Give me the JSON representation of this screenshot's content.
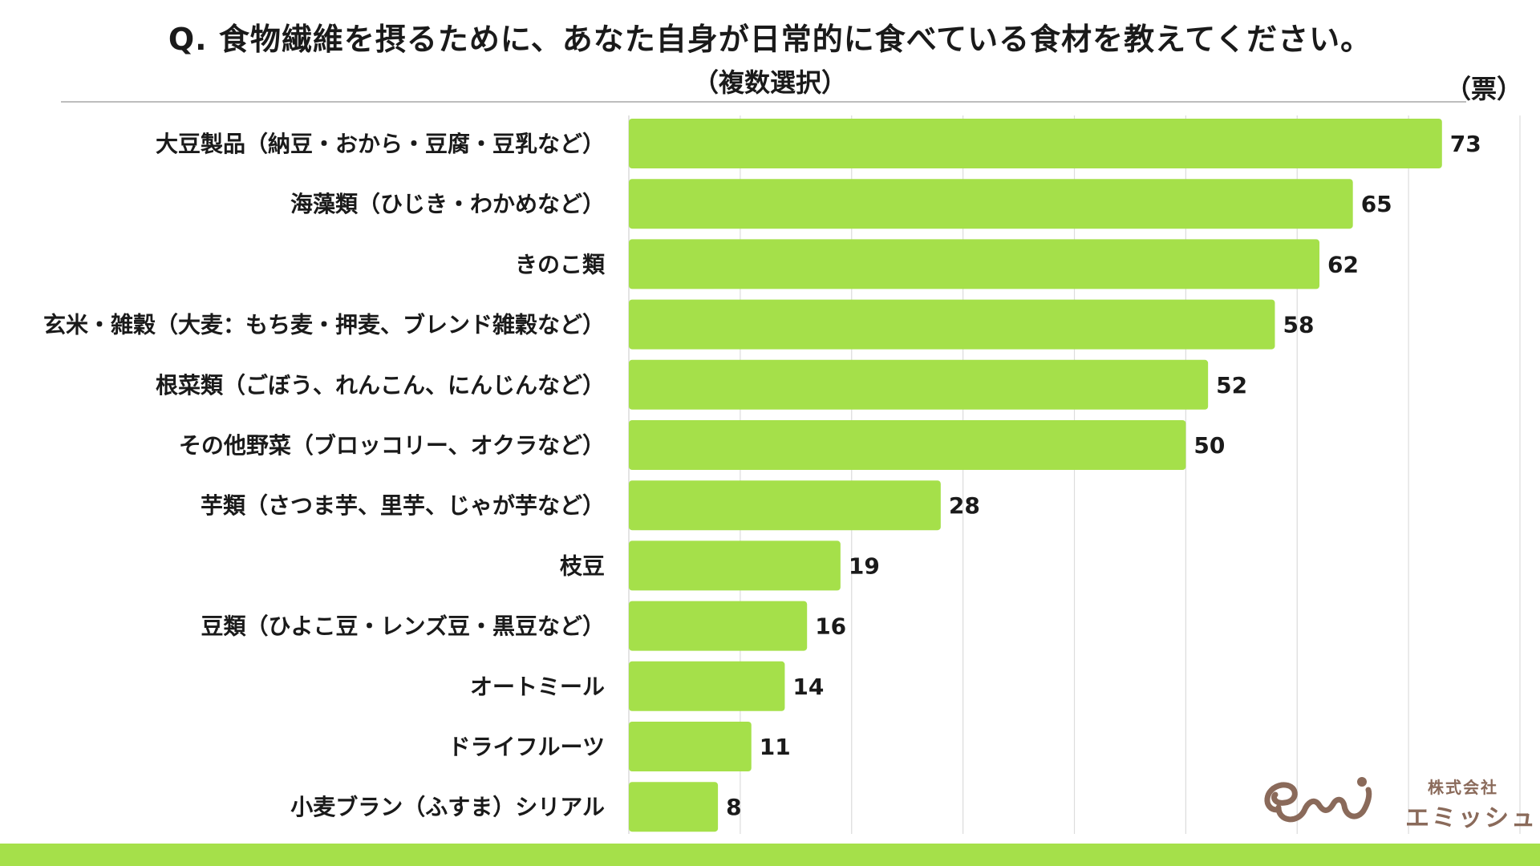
{
  "header": {
    "title": "Q. 食物繊維を摂るために、あなた自身が日常的に食べている食材を教えてください。",
    "subtitle": "（複数選択）",
    "unit": "（票）"
  },
  "brand": {
    "company_type": "株式会社",
    "company_name": "エミッシュ",
    "logo_color": "#8a6a5a"
  },
  "colors": {
    "bar": "#a5e04a",
    "band": "#a5e04a",
    "grid": "#dcdcdc"
  },
  "chart_data": {
    "type": "bar",
    "orientation": "horizontal",
    "title": "Q. 食物繊維を摂るために、あなた自身が日常的に食べている食材を教えてください。",
    "subtitle": "（複数選択）",
    "unit": "（票）",
    "categories": [
      "大豆製品（納豆・おから・豆腐・豆乳など）",
      "海藻類（ひじき・わかめなど）",
      "きのこ類",
      "玄米・雑穀（大麦：もち麦・押麦、ブレンド雑穀など）",
      "根菜類（ごぼう、れんこん、にんじんなど）",
      "その他野菜（ブロッコリー、オクラなど）",
      "芋類（さつま芋、里芋、じゃが芋など）",
      "枝豆",
      "豆類（ひよこ豆・レンズ豆・黒豆など）",
      "オートミール",
      "ドライフルーツ",
      "小麦ブラン（ふすま）シリアル"
    ],
    "values": [
      73,
      65,
      62,
      58,
      52,
      50,
      28,
      19,
      16,
      14,
      11,
      8
    ],
    "xlim": [
      0,
      80
    ],
    "grid": true,
    "data_labels": true
  }
}
